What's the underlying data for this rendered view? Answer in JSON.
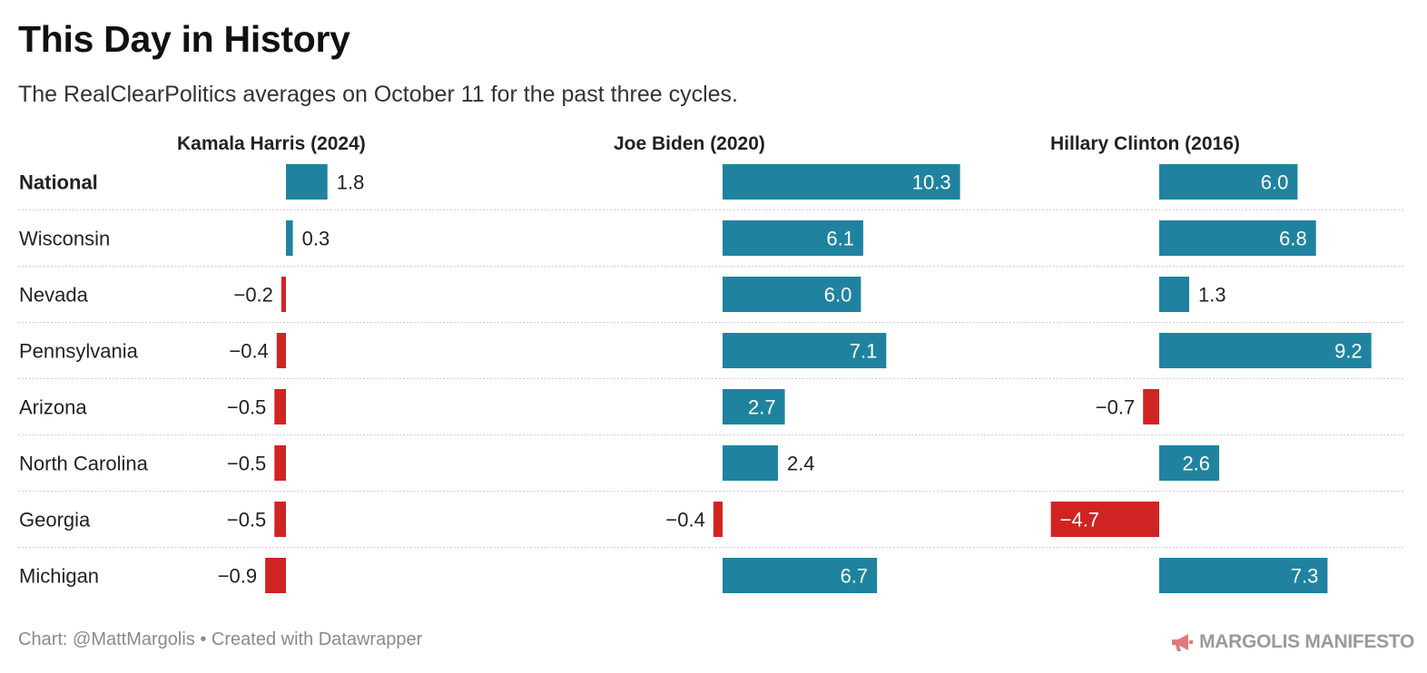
{
  "header": {
    "title": "This Day in History",
    "subtitle": "The RealClearPolitics averages on October 11 for the past three cycles."
  },
  "footer": {
    "credit": "Chart: @MattMargolis • Created with Datawrapper",
    "brand": "MARGOLIS MANIFESTO",
    "brand_icon": "megaphone-icon"
  },
  "colors": {
    "positive": "#1f83a0",
    "negative": "#d02424",
    "brand_icon": "#e07a7a"
  },
  "chart_data": {
    "type": "bar",
    "orientation": "horizontal",
    "grid": false,
    "categories": [
      "National",
      "Wisconsin",
      "Nevada",
      "Pennsylvania",
      "Arizona",
      "North Carolina",
      "Georgia",
      "Michigan"
    ],
    "series": [
      {
        "name": "Kamala Harris (2024)",
        "values": [
          1.8,
          0.3,
          -0.2,
          -0.4,
          -0.5,
          -0.5,
          -0.5,
          -0.9
        ],
        "labels": [
          "1.8",
          "0.3",
          "−0.2",
          "−0.4",
          "−0.5",
          "−0.5",
          "−0.5",
          "−0.9"
        ]
      },
      {
        "name": "Joe Biden (2020)",
        "values": [
          10.3,
          6.1,
          6.0,
          7.1,
          2.7,
          2.4,
          -0.4,
          6.7
        ],
        "labels": [
          "10.3",
          "6.1",
          "6.0",
          "7.1",
          "2.7",
          "2.4",
          "−0.4",
          "6.7"
        ]
      },
      {
        "name": "Hillary Clinton (2016)",
        "values": [
          6.0,
          6.8,
          1.3,
          9.2,
          -0.7,
          2.6,
          -4.7,
          7.3
        ],
        "labels": [
          "6.0",
          "6.8",
          "1.3",
          "9.2",
          "−0.7",
          "2.6",
          "−4.7",
          "7.3"
        ]
      }
    ]
  }
}
